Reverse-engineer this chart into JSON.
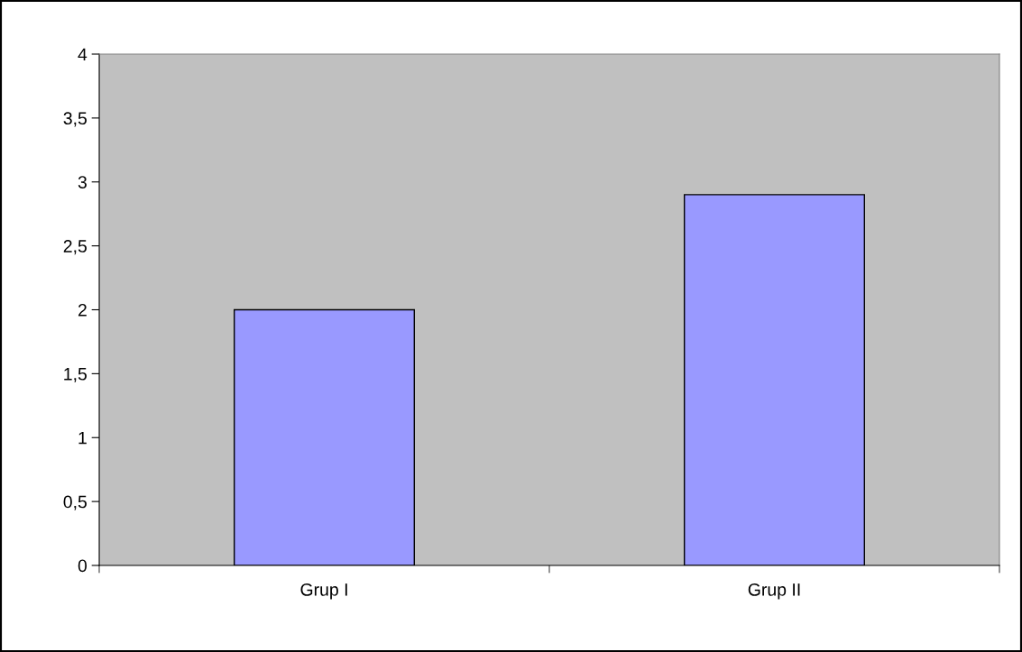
{
  "chart_data": {
    "type": "bar",
    "categories": [
      "Grup I",
      "Grup II"
    ],
    "values": [
      2,
      2.9
    ],
    "color": "#9999ff",
    "ylim": [
      0,
      4
    ],
    "yticks": [
      0,
      {
        "value": 0.5,
        "label": "0,5"
      },
      1,
      {
        "value": 1.5,
        "label": "1,5"
      },
      2,
      {
        "value": 2.5,
        "label": "2,5"
      },
      3,
      {
        "value": 3.5,
        "label": "3,5"
      },
      4
    ],
    "grid": false,
    "legend": false
  }
}
